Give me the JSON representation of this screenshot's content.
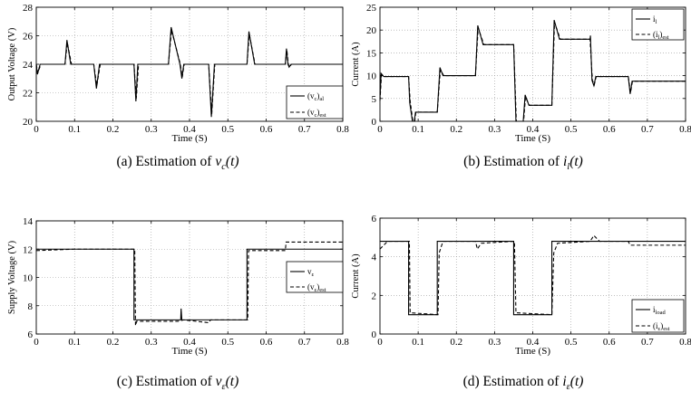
{
  "chart_data": [
    {
      "type": "line",
      "caption": "(a) Estimation of ",
      "caption_var": "v",
      "caption_sub": "c",
      "caption_tail": "(t)",
      "xlabel": "Time (S)",
      "ylabel": "Output Voltage (V)",
      "xlim": [
        0,
        0.8
      ],
      "ylim": [
        20,
        28
      ],
      "xticks": [
        "0",
        "0.1",
        "0.2",
        "0.3",
        "0.4",
        "0.5",
        "0.6",
        "0.7",
        "0.8"
      ],
      "yticks": [
        "20",
        "22",
        "24",
        "26",
        "28"
      ],
      "legend_position": "bottom-right",
      "grid": true,
      "legend": [
        {
          "name": "(v",
          "sub": "c",
          "post": ")",
          "tail": "al",
          "style": "solid"
        },
        {
          "name": "(v",
          "sub": "c",
          "post": ")",
          "tail": "est",
          "style": "dashed"
        }
      ],
      "series": [
        {
          "style": "solid",
          "points": [
            [
              0,
              24
            ],
            [
              0.003,
              23.3
            ],
            [
              0.01,
              24
            ],
            [
              0.075,
              24
            ],
            [
              0.08,
              25.7
            ],
            [
              0.09,
              24
            ],
            [
              0.15,
              24
            ],
            [
              0.157,
              22.3
            ],
            [
              0.165,
              24
            ],
            [
              0.255,
              24
            ],
            [
              0.26,
              21.4
            ],
            [
              0.265,
              24
            ],
            [
              0.345,
              24
            ],
            [
              0.352,
              26.6
            ],
            [
              0.375,
              24
            ],
            [
              0.38,
              23
            ],
            [
              0.385,
              24
            ],
            [
              0.45,
              24
            ],
            [
              0.457,
              20.3
            ],
            [
              0.465,
              24
            ],
            [
              0.55,
              24
            ],
            [
              0.555,
              26.3
            ],
            [
              0.57,
              24
            ],
            [
              0.65,
              24
            ],
            [
              0.653,
              25.1
            ],
            [
              0.657,
              24
            ],
            [
              0.66,
              23.8
            ],
            [
              0.665,
              24
            ],
            [
              0.8,
              24
            ]
          ]
        },
        {
          "style": "dashed",
          "points": [
            [
              0,
              24
            ],
            [
              0.004,
              23.4
            ],
            [
              0.012,
              24
            ],
            [
              0.075,
              24
            ],
            [
              0.081,
              25.5
            ],
            [
              0.092,
              24
            ],
            [
              0.15,
              24
            ],
            [
              0.158,
              22.5
            ],
            [
              0.167,
              24
            ],
            [
              0.255,
              24
            ],
            [
              0.261,
              21.6
            ],
            [
              0.267,
              24
            ],
            [
              0.345,
              24
            ],
            [
              0.353,
              26.4
            ],
            [
              0.376,
              24
            ],
            [
              0.381,
              23.1
            ],
            [
              0.386,
              24
            ],
            [
              0.45,
              24
            ],
            [
              0.458,
              20.5
            ],
            [
              0.466,
              24
            ],
            [
              0.55,
              24
            ],
            [
              0.556,
              26.1
            ],
            [
              0.571,
              24
            ],
            [
              0.65,
              24
            ],
            [
              0.654,
              25
            ],
            [
              0.658,
              24
            ],
            [
              0.661,
              23.8
            ],
            [
              0.666,
              24
            ],
            [
              0.8,
              24
            ]
          ]
        }
      ]
    },
    {
      "type": "line",
      "caption": "(b) Estimation of ",
      "caption_var": "i",
      "caption_sub": "l",
      "caption_tail": "(t)",
      "xlabel": "Time (S)",
      "ylabel": "Current (A)",
      "xlim": [
        0,
        0.8
      ],
      "ylim": [
        0,
        25
      ],
      "xticks": [
        "0",
        "0.1",
        "0.2",
        "0.3",
        "0.4",
        "0.5",
        "0.6",
        "0.7",
        "0.8"
      ],
      "yticks": [
        "0",
        "5",
        "10",
        "15",
        "20",
        "25"
      ],
      "legend_position": "top-right",
      "grid": true,
      "legend": [
        {
          "name": "i",
          "sub": "l",
          "post": "",
          "tail": "",
          "style": "solid"
        },
        {
          "name": "(i",
          "sub": "l",
          "post": ")",
          "tail": "est",
          "style": "dashed"
        }
      ],
      "series": [
        {
          "style": "solid",
          "points": [
            [
              0,
              5
            ],
            [
              0.003,
              10.5
            ],
            [
              0.01,
              9.8
            ],
            [
              0.075,
              9.8
            ],
            [
              0.078,
              4
            ],
            [
              0.085,
              0
            ],
            [
              0.09,
              0
            ],
            [
              0.093,
              2
            ],
            [
              0.15,
              2
            ],
            [
              0.157,
              11.8
            ],
            [
              0.165,
              10
            ],
            [
              0.25,
              10
            ],
            [
              0.256,
              21
            ],
            [
              0.27,
              16.8
            ],
            [
              0.35,
              16.8
            ],
            [
              0.356,
              0
            ],
            [
              0.375,
              0
            ],
            [
              0.38,
              5.8
            ],
            [
              0.39,
              3.5
            ],
            [
              0.45,
              3.5
            ],
            [
              0.456,
              22.2
            ],
            [
              0.47,
              18
            ],
            [
              0.55,
              18
            ],
            [
              0.551,
              18.8
            ],
            [
              0.555,
              9
            ],
            [
              0.56,
              7.8
            ],
            [
              0.565,
              9.8
            ],
            [
              0.65,
              9.8
            ],
            [
              0.655,
              6
            ],
            [
              0.66,
              8.8
            ],
            [
              0.8,
              8.8
            ]
          ]
        },
        {
          "style": "dashed",
          "points": [
            [
              0,
              4.5
            ],
            [
              0.004,
              10.2
            ],
            [
              0.012,
              9.8
            ],
            [
              0.075,
              9.8
            ],
            [
              0.079,
              4.5
            ],
            [
              0.086,
              0
            ],
            [
              0.091,
              0
            ],
            [
              0.094,
              2
            ],
            [
              0.15,
              2
            ],
            [
              0.158,
              11.3
            ],
            [
              0.167,
              10
            ],
            [
              0.25,
              10
            ],
            [
              0.257,
              20.5
            ],
            [
              0.272,
              16.8
            ],
            [
              0.35,
              16.8
            ],
            [
              0.357,
              0
            ],
            [
              0.376,
              0
            ],
            [
              0.381,
              5.3
            ],
            [
              0.391,
              3.5
            ],
            [
              0.45,
              3.5
            ],
            [
              0.457,
              21.7
            ],
            [
              0.472,
              18
            ],
            [
              0.55,
              18
            ],
            [
              0.556,
              9
            ],
            [
              0.561,
              8
            ],
            [
              0.566,
              9.8
            ],
            [
              0.65,
              9.8
            ],
            [
              0.656,
              6.3
            ],
            [
              0.661,
              8.8
            ],
            [
              0.8,
              8.8
            ]
          ]
        }
      ]
    },
    {
      "type": "line",
      "caption": "(c) Estimation of ",
      "caption_var": "v",
      "caption_sub": "ε",
      "caption_tail": "(t)",
      "xlabel": "Time (S)",
      "ylabel": "Supply Voltage (V)",
      "xlim": [
        0,
        0.8
      ],
      "ylim": [
        6,
        14
      ],
      "xticks": [
        "0",
        "0.1",
        "0.2",
        "0.3",
        "0.4",
        "0.5",
        "0.6",
        "0.7",
        "0.8"
      ],
      "yticks": [
        "6",
        "8",
        "10",
        "12",
        "14"
      ],
      "legend_position": "center-right",
      "grid": true,
      "legend": [
        {
          "name": "v",
          "sub": "ε",
          "post": "",
          "tail": "",
          "style": "solid"
        },
        {
          "name": "(v",
          "sub": "ε",
          "post": ")",
          "tail": "est",
          "style": "dashed"
        }
      ],
      "series": [
        {
          "style": "solid",
          "points": [
            [
              0,
              12
            ],
            [
              0.255,
              12
            ],
            [
              0.255,
              7
            ],
            [
              0.377,
              7
            ],
            [
              0.378,
              7.8
            ],
            [
              0.38,
              7
            ],
            [
              0.55,
              7
            ],
            [
              0.55,
              12
            ],
            [
              0.8,
              12
            ]
          ]
        },
        {
          "style": "dashed",
          "points": [
            [
              0,
              11.9
            ],
            [
              0.1,
              12
            ],
            [
              0.257,
              12
            ],
            [
              0.259,
              6.6
            ],
            [
              0.262,
              6.9
            ],
            [
              0.37,
              6.9
            ],
            [
              0.385,
              7
            ],
            [
              0.45,
              6.8
            ],
            [
              0.455,
              7
            ],
            [
              0.552,
              7
            ],
            [
              0.554,
              11.9
            ],
            [
              0.65,
              11.9
            ],
            [
              0.652,
              12.5
            ],
            [
              0.8,
              12.5
            ]
          ]
        }
      ]
    },
    {
      "type": "line",
      "caption": "(d) Estimation of ",
      "caption_var": "i",
      "caption_sub": "ε",
      "caption_tail": "(t)",
      "xlabel": "Time (S)",
      "ylabel": "Current (A)",
      "xlim": [
        0,
        0.8
      ],
      "ylim": [
        0,
        6
      ],
      "xticks": [
        "0",
        "0.1",
        "0.2",
        "0.3",
        "0.4",
        "0.5",
        "0.6",
        "0.7",
        "0.8"
      ],
      "yticks": [
        "0",
        "2",
        "4",
        "6"
      ],
      "legend_position": "bottom-right",
      "grid": true,
      "legend": [
        {
          "name": "i",
          "sub": "load",
          "post": "",
          "tail": "",
          "style": "solid"
        },
        {
          "name": "(i",
          "sub": "ε",
          "post": ")",
          "tail": "est",
          "style": "dashed"
        }
      ],
      "series": [
        {
          "style": "solid",
          "points": [
            [
              0,
              4.8
            ],
            [
              0.075,
              4.8
            ],
            [
              0.075,
              1
            ],
            [
              0.15,
              1
            ],
            [
              0.15,
              4.8
            ],
            [
              0.35,
              4.8
            ],
            [
              0.35,
              1
            ],
            [
              0.45,
              1
            ],
            [
              0.45,
              4.8
            ],
            [
              0.8,
              4.8
            ]
          ]
        },
        {
          "style": "dashed",
          "points": [
            [
              0,
              4.4
            ],
            [
              0.02,
              4.8
            ],
            [
              0.077,
              4.8
            ],
            [
              0.079,
              1.1
            ],
            [
              0.152,
              1
            ],
            [
              0.155,
              4.2
            ],
            [
              0.165,
              4.8
            ],
            [
              0.25,
              4.8
            ],
            [
              0.255,
              4.4
            ],
            [
              0.265,
              4.7
            ],
            [
              0.352,
              4.8
            ],
            [
              0.356,
              1.1
            ],
            [
              0.45,
              1
            ],
            [
              0.455,
              4.2
            ],
            [
              0.465,
              4.7
            ],
            [
              0.55,
              4.8
            ],
            [
              0.56,
              5.1
            ],
            [
              0.575,
              4.8
            ],
            [
              0.65,
              4.8
            ],
            [
              0.655,
              4.6
            ],
            [
              0.8,
              4.6
            ]
          ]
        }
      ]
    }
  ]
}
